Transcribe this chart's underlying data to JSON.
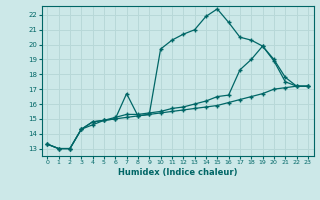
{
  "xlabel": "Humidex (Indice chaleur)",
  "bg_color": "#cce8e8",
  "grid_color": "#b8d8d8",
  "line_color": "#006666",
  "xlim": [
    -0.5,
    23.5
  ],
  "ylim": [
    12.5,
    22.6
  ],
  "yticks": [
    13,
    14,
    15,
    16,
    17,
    18,
    19,
    20,
    21,
    22
  ],
  "xticks": [
    0,
    1,
    2,
    3,
    4,
    5,
    6,
    7,
    8,
    9,
    10,
    11,
    12,
    13,
    14,
    15,
    16,
    17,
    18,
    19,
    20,
    21,
    22,
    23
  ],
  "series": [
    {
      "x": [
        0,
        1,
        2,
        3,
        4,
        5,
        6,
        7,
        8,
        9,
        10,
        11,
        12,
        13,
        14,
        15,
        16,
        17,
        18,
        19,
        20,
        21,
        22,
        23
      ],
      "y": [
        13.3,
        13.0,
        13.0,
        14.3,
        14.8,
        14.9,
        15.0,
        16.7,
        15.2,
        15.3,
        19.7,
        20.3,
        20.7,
        21.0,
        21.9,
        22.4,
        21.5,
        20.5,
        20.3,
        19.9,
        19.0,
        17.8,
        17.2,
        17.2
      ]
    },
    {
      "x": [
        0,
        1,
        2,
        3,
        4,
        5,
        6,
        7,
        8,
        9,
        10,
        11,
        12,
        13,
        14,
        15,
        16,
        17,
        18,
        19,
        20,
        21,
        22,
        23
      ],
      "y": [
        13.3,
        13.0,
        13.0,
        14.3,
        14.8,
        14.9,
        15.1,
        15.3,
        15.3,
        15.4,
        15.5,
        15.7,
        15.8,
        16.0,
        16.2,
        16.5,
        16.6,
        18.3,
        19.0,
        19.9,
        18.9,
        17.5,
        17.2,
        17.2
      ]
    },
    {
      "x": [
        0,
        1,
        2,
        3,
        4,
        5,
        6,
        7,
        8,
        9,
        10,
        11,
        12,
        13,
        14,
        15,
        16,
        17,
        18,
        19,
        20,
        21,
        22,
        23
      ],
      "y": [
        13.3,
        13.0,
        13.0,
        14.3,
        14.6,
        14.9,
        15.0,
        15.1,
        15.2,
        15.3,
        15.4,
        15.5,
        15.6,
        15.7,
        15.8,
        15.9,
        16.1,
        16.3,
        16.5,
        16.7,
        17.0,
        17.1,
        17.2,
        17.2
      ]
    }
  ]
}
